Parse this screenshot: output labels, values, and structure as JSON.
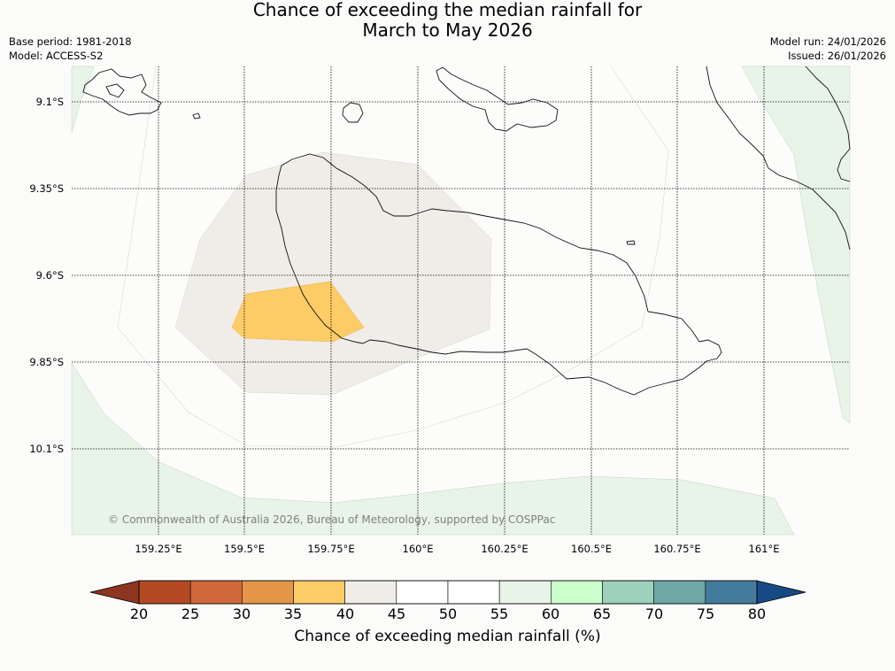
{
  "header": {
    "title_line1": "Chance of exceeding the median rainfall for",
    "title_line2": "March to May 2026",
    "base_period": "Base period: 1981-2018",
    "model": "Model: ACCESS-S2",
    "model_run": "Model run: 24/01/2026",
    "issued": "Issued: 26/01/2026"
  },
  "map": {
    "lat_labels": [
      "9.1°S",
      "9.35°S",
      "9.6°S",
      "9.85°S",
      "10.1°S"
    ],
    "lon_labels": [
      "159.25°E",
      "159.5°E",
      "159.75°E",
      "160°E",
      "160.25°E",
      "160.5°E",
      "160.75°E",
      "161°E"
    ],
    "copyright": "© Commonwealth of Australia 2026, Bureau of Meteorology, supported by COSPPac",
    "categories": [
      {
        "range": "55-60",
        "color": "#e8f4e8"
      },
      {
        "range": "40-45",
        "color": "#f0ece8"
      },
      {
        "range": "35-40",
        "color": "#fdcc66"
      }
    ]
  },
  "colorbar": {
    "ticks": [
      "20",
      "25",
      "30",
      "35",
      "40",
      "45",
      "50",
      "55",
      "60",
      "65",
      "70",
      "75",
      "80"
    ],
    "colors": [
      "#b34a24",
      "#d1683a",
      "#e39648",
      "#fdcc66",
      "#f0ece8",
      "#ffffff",
      "#ffffff",
      "#e8f4e8",
      "#ccffcc",
      "#9cd1bc",
      "#6fa6a6",
      "#427b9c"
    ],
    "low_extend_color": "#8c3520",
    "high_extend_color": "#174a84",
    "label": "Chance of exceeding median rainfall (%)"
  }
}
